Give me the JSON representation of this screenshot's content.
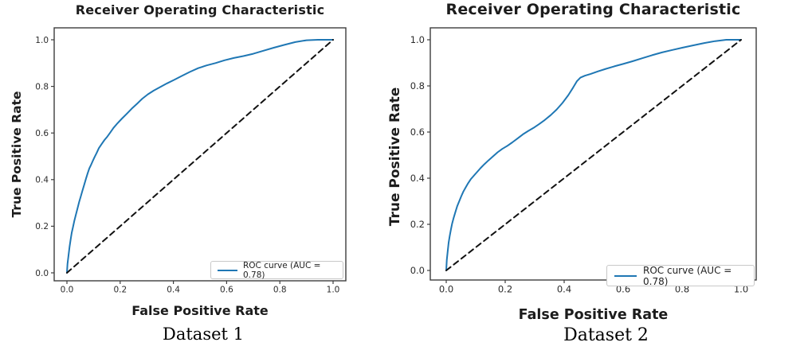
{
  "colors": {
    "background": "#ffffff",
    "roc_blue": "#1f77b4",
    "chance_black": "#111111",
    "spine": "#3d3d3d",
    "tick_text": "#2b2b2b",
    "label_text": "#1c1c1c",
    "legend_border": "#c8c8c8"
  },
  "chart_data": [
    {
      "type": "line",
      "title": "Receiver Operating Characteristic",
      "xlabel": "False Positive Rate",
      "ylabel": "True Positive Rate",
      "caption": "Dataset 1",
      "xticks": [
        "0.0",
        "0.2",
        "0.4",
        "0.6",
        "0.8",
        "1.0"
      ],
      "yticks": [
        "0.0",
        "0.2",
        "0.4",
        "0.6",
        "0.8",
        "1.0"
      ],
      "xlim": [
        -0.05,
        1.05
      ],
      "ylim": [
        -0.05,
        1.05
      ],
      "grid": false,
      "auc": 0.78,
      "legend": {
        "position": "lower right",
        "label": "ROC curve (AUC = 0.78)"
      },
      "series": [
        {
          "name": "ROC curve (AUC = 0.78)",
          "color": "#1f77b4",
          "style": "solid",
          "x": [
            0,
            0.002,
            0.006,
            0.01,
            0.014,
            0.018,
            0.023,
            0.028,
            0.034,
            0.04,
            0.046,
            0.052,
            0.058,
            0.065,
            0.072,
            0.078,
            0.084,
            0.09,
            0.097,
            0.104,
            0.112,
            0.12,
            0.13,
            0.141,
            0.152,
            0.163,
            0.175,
            0.19,
            0.207,
            0.225,
            0.244,
            0.263,
            0.283,
            0.304,
            0.326,
            0.35,
            0.376,
            0.403,
            0.432,
            0.462,
            0.493,
            0.525,
            0.558,
            0.592,
            0.627,
            0.663,
            0.7,
            0.738,
            0.777,
            0.817,
            0.858,
            0.9,
            0.943,
            1.0
          ],
          "y": [
            0,
            0.038,
            0.075,
            0.112,
            0.144,
            0.172,
            0.198,
            0.225,
            0.252,
            0.278,
            0.305,
            0.328,
            0.352,
            0.378,
            0.405,
            0.428,
            0.448,
            0.462,
            0.48,
            0.497,
            0.515,
            0.535,
            0.552,
            0.57,
            0.585,
            0.602,
            0.622,
            0.642,
            0.662,
            0.683,
            0.705,
            0.725,
            0.747,
            0.766,
            0.782,
            0.797,
            0.813,
            0.828,
            0.845,
            0.862,
            0.878,
            0.89,
            0.9,
            0.912,
            0.922,
            0.93,
            0.94,
            0.953,
            0.966,
            0.978,
            0.99,
            0.998,
            1.0,
            1.0
          ]
        },
        {
          "name": "chance diagonal",
          "color": "#111111",
          "style": "dashed",
          "x": [
            0,
            1
          ],
          "y": [
            0,
            1
          ]
        }
      ]
    },
    {
      "type": "line",
      "title": "Receiver Operating Characteristic",
      "xlabel": "False Positive Rate",
      "ylabel": "True Positive Rate",
      "caption": "Dataset 2",
      "xticks": [
        "0.0",
        "0.2",
        "0.4",
        "0.6",
        "0.8",
        "1.0"
      ],
      "yticks": [
        "0.0",
        "0.2",
        "0.4",
        "0.6",
        "0.8",
        "1.0"
      ],
      "xlim": [
        -0.05,
        1.05
      ],
      "ylim": [
        -0.05,
        1.05
      ],
      "grid": false,
      "auc": 0.78,
      "legend": {
        "position": "lower right",
        "label": "ROC curve (AUC = 0.78)"
      },
      "series": [
        {
          "name": "ROC curve (AUC = 0.78)",
          "color": "#1f77b4",
          "style": "solid",
          "x": [
            0,
            0.002,
            0.005,
            0.008,
            0.012,
            0.016,
            0.02,
            0.025,
            0.031,
            0.037,
            0.044,
            0.051,
            0.058,
            0.066,
            0.074,
            0.083,
            0.093,
            0.104,
            0.116,
            0.129,
            0.143,
            0.158,
            0.174,
            0.19,
            0.207,
            0.224,
            0.242,
            0.26,
            0.278,
            0.296,
            0.315,
            0.334,
            0.354,
            0.374,
            0.394,
            0.414,
            0.43,
            0.443,
            0.455,
            0.47,
            0.49,
            0.515,
            0.542,
            0.57,
            0.6,
            0.632,
            0.665,
            0.698,
            0.732,
            0.767,
            0.802,
            0.838,
            0.875,
            0.912,
            0.95,
            1.0
          ],
          "y": [
            0,
            0.045,
            0.085,
            0.12,
            0.15,
            0.178,
            0.203,
            0.228,
            0.253,
            0.278,
            0.3,
            0.322,
            0.342,
            0.36,
            0.378,
            0.395,
            0.41,
            0.426,
            0.443,
            0.46,
            0.477,
            0.494,
            0.512,
            0.527,
            0.54,
            0.555,
            0.572,
            0.59,
            0.605,
            0.618,
            0.634,
            0.652,
            0.673,
            0.697,
            0.726,
            0.76,
            0.792,
            0.82,
            0.836,
            0.844,
            0.852,
            0.863,
            0.874,
            0.885,
            0.895,
            0.907,
            0.92,
            0.933,
            0.945,
            0.956,
            0.966,
            0.976,
            0.986,
            0.994,
            1.0,
            1.0
          ]
        },
        {
          "name": "chance diagonal",
          "color": "#111111",
          "style": "dashed",
          "x": [
            0,
            1
          ],
          "y": [
            0,
            1
          ]
        }
      ]
    }
  ]
}
